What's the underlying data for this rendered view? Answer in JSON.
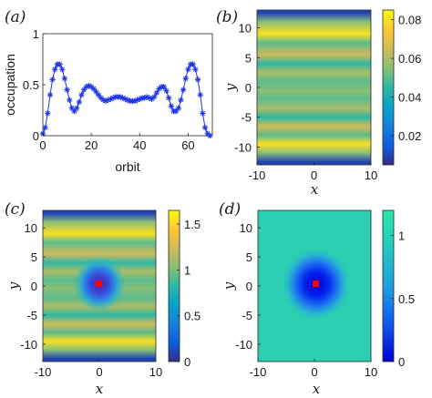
{
  "chart_data": [
    {
      "panel": "(a)",
      "type": "line",
      "marker": "asterisk",
      "color": "#1f35e6",
      "xlabel": "orbit",
      "ylabel": "occupation",
      "xlim": [
        0,
        70
      ],
      "ylim": [
        0,
        1
      ],
      "xticks": [
        "0",
        "20",
        "40",
        "60"
      ],
      "yticks": [
        "0",
        "0.5",
        "1"
      ],
      "x": [
        0,
        1,
        2,
        3,
        4,
        5,
        6,
        7,
        8,
        9,
        10,
        11,
        12,
        13,
        14,
        15,
        16,
        17,
        18,
        19,
        20,
        21,
        22,
        23,
        24,
        25,
        26,
        27,
        28,
        29,
        30,
        31,
        32,
        33,
        34,
        35,
        36,
        37,
        38,
        39,
        40,
        41,
        42,
        43,
        44,
        45,
        46,
        47,
        48,
        49,
        50,
        51,
        52,
        53,
        54,
        55,
        56,
        57,
        58,
        59,
        60,
        61,
        62,
        63,
        64,
        65,
        66,
        67,
        68,
        69
      ],
      "y": [
        0.02,
        0.08,
        0.22,
        0.4,
        0.55,
        0.65,
        0.7,
        0.7,
        0.65,
        0.56,
        0.45,
        0.35,
        0.27,
        0.24,
        0.27,
        0.33,
        0.4,
        0.45,
        0.48,
        0.49,
        0.48,
        0.46,
        0.43,
        0.4,
        0.37,
        0.35,
        0.34,
        0.35,
        0.36,
        0.37,
        0.38,
        0.38,
        0.38,
        0.37,
        0.36,
        0.35,
        0.34,
        0.34,
        0.34,
        0.35,
        0.36,
        0.37,
        0.37,
        0.38,
        0.37,
        0.36,
        0.38,
        0.42,
        0.46,
        0.48,
        0.48,
        0.44,
        0.37,
        0.29,
        0.24,
        0.24,
        0.27,
        0.35,
        0.45,
        0.56,
        0.65,
        0.7,
        0.7,
        0.65,
        0.55,
        0.4,
        0.22,
        0.08,
        0.02,
        0.0
      ]
    },
    {
      "panel": "(b)",
      "type": "heatmap",
      "xlabel": "x",
      "ylabel": "y",
      "xlim": [
        -10,
        10
      ],
      "ylim": [
        -13,
        13
      ],
      "xticks": [
        "-10",
        "0",
        "10"
      ],
      "yticks": [
        "10",
        "5",
        "0",
        "-5",
        "-10"
      ],
      "colorbar": {
        "ticks": [
          "0.02",
          "0.04",
          "0.06",
          "0.08"
        ],
        "range": [
          0.005,
          0.085
        ]
      },
      "stripes_y": [
        12.5,
        11.0,
        9.0,
        7.5,
        5.5,
        4.0,
        2.5,
        1.0,
        -0.5,
        -2.0,
        -3.5,
        -5.0,
        -6.5,
        -8.0,
        -9.5,
        -11.0,
        -12.5
      ],
      "stripes_value": [
        0.01,
        0.055,
        0.08,
        0.05,
        0.065,
        0.045,
        0.06,
        0.05,
        0.055,
        0.05,
        0.06,
        0.045,
        0.065,
        0.05,
        0.08,
        0.055,
        0.01
      ]
    },
    {
      "panel": "(c)",
      "type": "heatmap",
      "xlabel": "x",
      "ylabel": "y",
      "xlim": [
        -10,
        10
      ],
      "ylim": [
        -13,
        13
      ],
      "xticks": [
        "-10",
        "0",
        "10"
      ],
      "yticks": [
        "10",
        "5",
        "0",
        "-5",
        "-10"
      ],
      "colorbar": {
        "ticks": [
          "0",
          "0.5",
          "1",
          "1.5"
        ],
        "range": [
          0,
          1.65
        ]
      },
      "marker": {
        "x": 0,
        "y": 0,
        "color": "#ff0000"
      }
    },
    {
      "panel": "(d)",
      "type": "heatmap",
      "xlabel": "x",
      "ylabel": "y",
      "xlim": [
        -10,
        10
      ],
      "ylim": [
        -13,
        13
      ],
      "xticks": [
        "-10",
        "0",
        "10"
      ],
      "yticks": [
        "10",
        "5",
        "0",
        "-5",
        "-10"
      ],
      "colorbar": {
        "ticks": [
          "0",
          "0.5",
          "1"
        ],
        "range": [
          0,
          1.2
        ]
      },
      "background_value": 1.0,
      "marker": {
        "x": 0,
        "y": 0,
        "color": "#ff0000"
      }
    }
  ]
}
